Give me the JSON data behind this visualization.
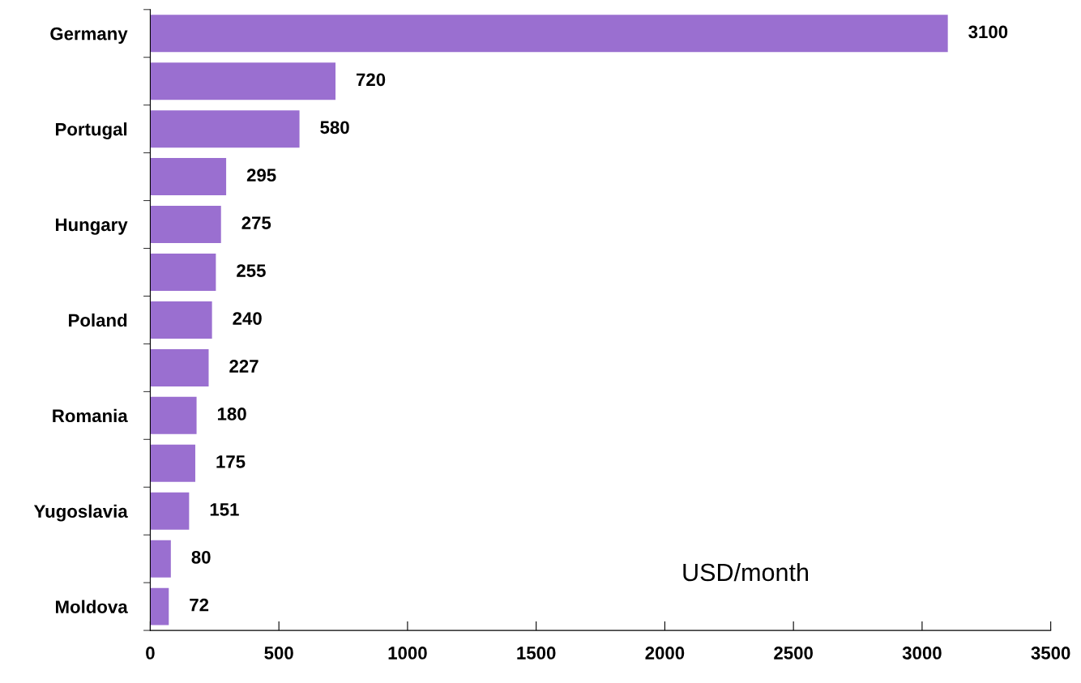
{
  "chart_data": {
    "type": "bar",
    "orientation": "horizontal",
    "categories": [
      "Germany",
      null,
      "Portugal",
      null,
      "Hungary",
      null,
      "Poland",
      null,
      "Romania",
      null,
      "Yugoslavia",
      null,
      "Moldova"
    ],
    "values": [
      3100,
      720,
      580,
      295,
      275,
      255,
      240,
      227,
      180,
      175,
      151,
      80,
      72
    ],
    "color": "#9a6fd0",
    "data_labels": true,
    "xlim": [
      0,
      3500
    ],
    "xticks": [
      0,
      500,
      1000,
      1500,
      2000,
      2500,
      3000,
      3500
    ],
    "grid": false,
    "annotations": [
      "USD/month"
    ]
  }
}
